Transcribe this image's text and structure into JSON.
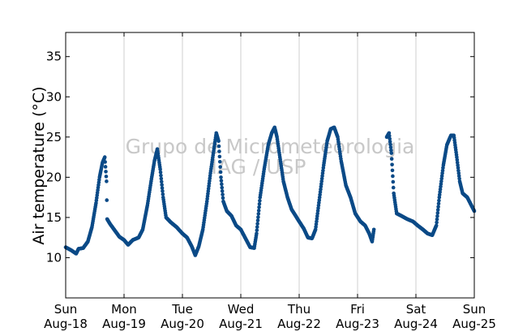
{
  "chart_data": {
    "type": "scatter",
    "title": "",
    "xlabel": "",
    "ylabel": "Air temperature (°C)",
    "watermark": [
      "Grupo de Micrometeorologia",
      "IAG / USP"
    ],
    "series_color": "#0b4a87",
    "grid": "vertical lines at day boundaries",
    "x_unit": "days since Sun Aug-18 00:00",
    "xlim": [
      0,
      7
    ],
    "ylim": [
      5,
      38
    ],
    "yticks": [
      10,
      15,
      20,
      25,
      30,
      35
    ],
    "xticks": [
      {
        "day": "Sun",
        "date": "Aug-18"
      },
      {
        "day": "Mon",
        "date": "Aug-19"
      },
      {
        "day": "Tue",
        "date": "Aug-20"
      },
      {
        "day": "Wed",
        "date": "Aug-21"
      },
      {
        "day": "Thu",
        "date": "Aug-22"
      },
      {
        "day": "Fri",
        "date": "Aug-23"
      },
      {
        "day": "Sat",
        "date": "Aug-24"
      },
      {
        "day": "Sun",
        "date": "Aug-25"
      }
    ],
    "segments": [
      {
        "points": [
          [
            0.0,
            11.3
          ],
          [
            0.1,
            10.9
          ],
          [
            0.18,
            10.5
          ],
          [
            0.22,
            11.1
          ],
          [
            0.3,
            11.2
          ],
          [
            0.38,
            12.0
          ],
          [
            0.45,
            13.8
          ],
          [
            0.52,
            16.8
          ],
          [
            0.58,
            20.0
          ],
          [
            0.63,
            21.8
          ],
          [
            0.67,
            22.5
          ],
          [
            0.7,
            19.5
          ],
          [
            0.71,
            14.8
          ],
          [
            0.76,
            14.2
          ],
          [
            0.83,
            13.5
          ],
          [
            0.92,
            12.6
          ],
          [
            1.0,
            12.2
          ],
          [
            1.07,
            11.6
          ],
          [
            1.15,
            12.2
          ],
          [
            1.25,
            12.5
          ],
          [
            1.32,
            13.5
          ],
          [
            1.4,
            16.5
          ],
          [
            1.47,
            19.8
          ],
          [
            1.52,
            22.0
          ],
          [
            1.57,
            23.5
          ],
          [
            1.62,
            21.0
          ],
          [
            1.67,
            17.5
          ],
          [
            1.72,
            15.0
          ],
          [
            1.8,
            14.4
          ],
          [
            1.9,
            13.8
          ],
          [
            2.0,
            13.0
          ],
          [
            2.08,
            12.5
          ],
          [
            2.16,
            11.4
          ],
          [
            2.22,
            10.3
          ],
          [
            2.28,
            11.4
          ],
          [
            2.35,
            13.5
          ],
          [
            2.42,
            17.0
          ],
          [
            2.48,
            20.5
          ],
          [
            2.53,
            23.0
          ],
          [
            2.58,
            25.5
          ],
          [
            2.62,
            24.5
          ],
          [
            2.66,
            20.0
          ],
          [
            2.7,
            17.0
          ],
          [
            2.76,
            15.8
          ],
          [
            2.84,
            15.2
          ],
          [
            2.92,
            14.0
          ],
          [
            3.0,
            13.5
          ],
          [
            3.08,
            12.4
          ],
          [
            3.16,
            11.3
          ],
          [
            3.23,
            11.2
          ],
          [
            3.27,
            13.0
          ],
          [
            3.33,
            17.5
          ],
          [
            3.4,
            21.0
          ],
          [
            3.47,
            24.0
          ],
          [
            3.53,
            25.5
          ],
          [
            3.58,
            26.2
          ],
          [
            3.62,
            25.0
          ],
          [
            3.67,
            22.5
          ],
          [
            3.73,
            19.5
          ],
          [
            3.8,
            17.5
          ],
          [
            3.87,
            16.0
          ],
          [
            3.94,
            15.2
          ],
          [
            4.0,
            14.5
          ],
          [
            4.08,
            13.6
          ],
          [
            4.15,
            12.5
          ],
          [
            4.22,
            12.4
          ],
          [
            4.28,
            13.5
          ],
          [
            4.35,
            17.5
          ],
          [
            4.42,
            21.5
          ],
          [
            4.48,
            24.5
          ],
          [
            4.54,
            26.0
          ],
          [
            4.6,
            26.2
          ],
          [
            4.66,
            25.0
          ],
          [
            4.72,
            22.0
          ],
          [
            4.8,
            19.0
          ],
          [
            4.88,
            17.5
          ],
          [
            4.96,
            15.5
          ],
          [
            5.05,
            14.5
          ],
          [
            5.13,
            14.0
          ],
          [
            5.2,
            13.0
          ],
          [
            5.25,
            12.0
          ],
          [
            5.28,
            13.5
          ]
        ]
      },
      {
        "points": [
          [
            5.5,
            25.0
          ],
          [
            5.54,
            25.5
          ],
          [
            5.58,
            23.0
          ],
          [
            5.62,
            18.0
          ],
          [
            5.67,
            15.5
          ],
          [
            5.75,
            15.2
          ],
          [
            5.85,
            14.8
          ],
          [
            5.95,
            14.5
          ],
          [
            6.03,
            14.0
          ],
          [
            6.12,
            13.5
          ],
          [
            6.2,
            13.0
          ],
          [
            6.28,
            12.8
          ],
          [
            6.35,
            14.0
          ],
          [
            6.4,
            17.5
          ],
          [
            6.47,
            21.5
          ],
          [
            6.53,
            24.0
          ],
          [
            6.6,
            25.2
          ],
          [
            6.65,
            25.2
          ],
          [
            6.7,
            22.5
          ],
          [
            6.75,
            19.5
          ],
          [
            6.8,
            18.0
          ],
          [
            6.88,
            17.5
          ],
          [
            6.95,
            16.5
          ],
          [
            7.0,
            15.8
          ]
        ]
      }
    ]
  }
}
